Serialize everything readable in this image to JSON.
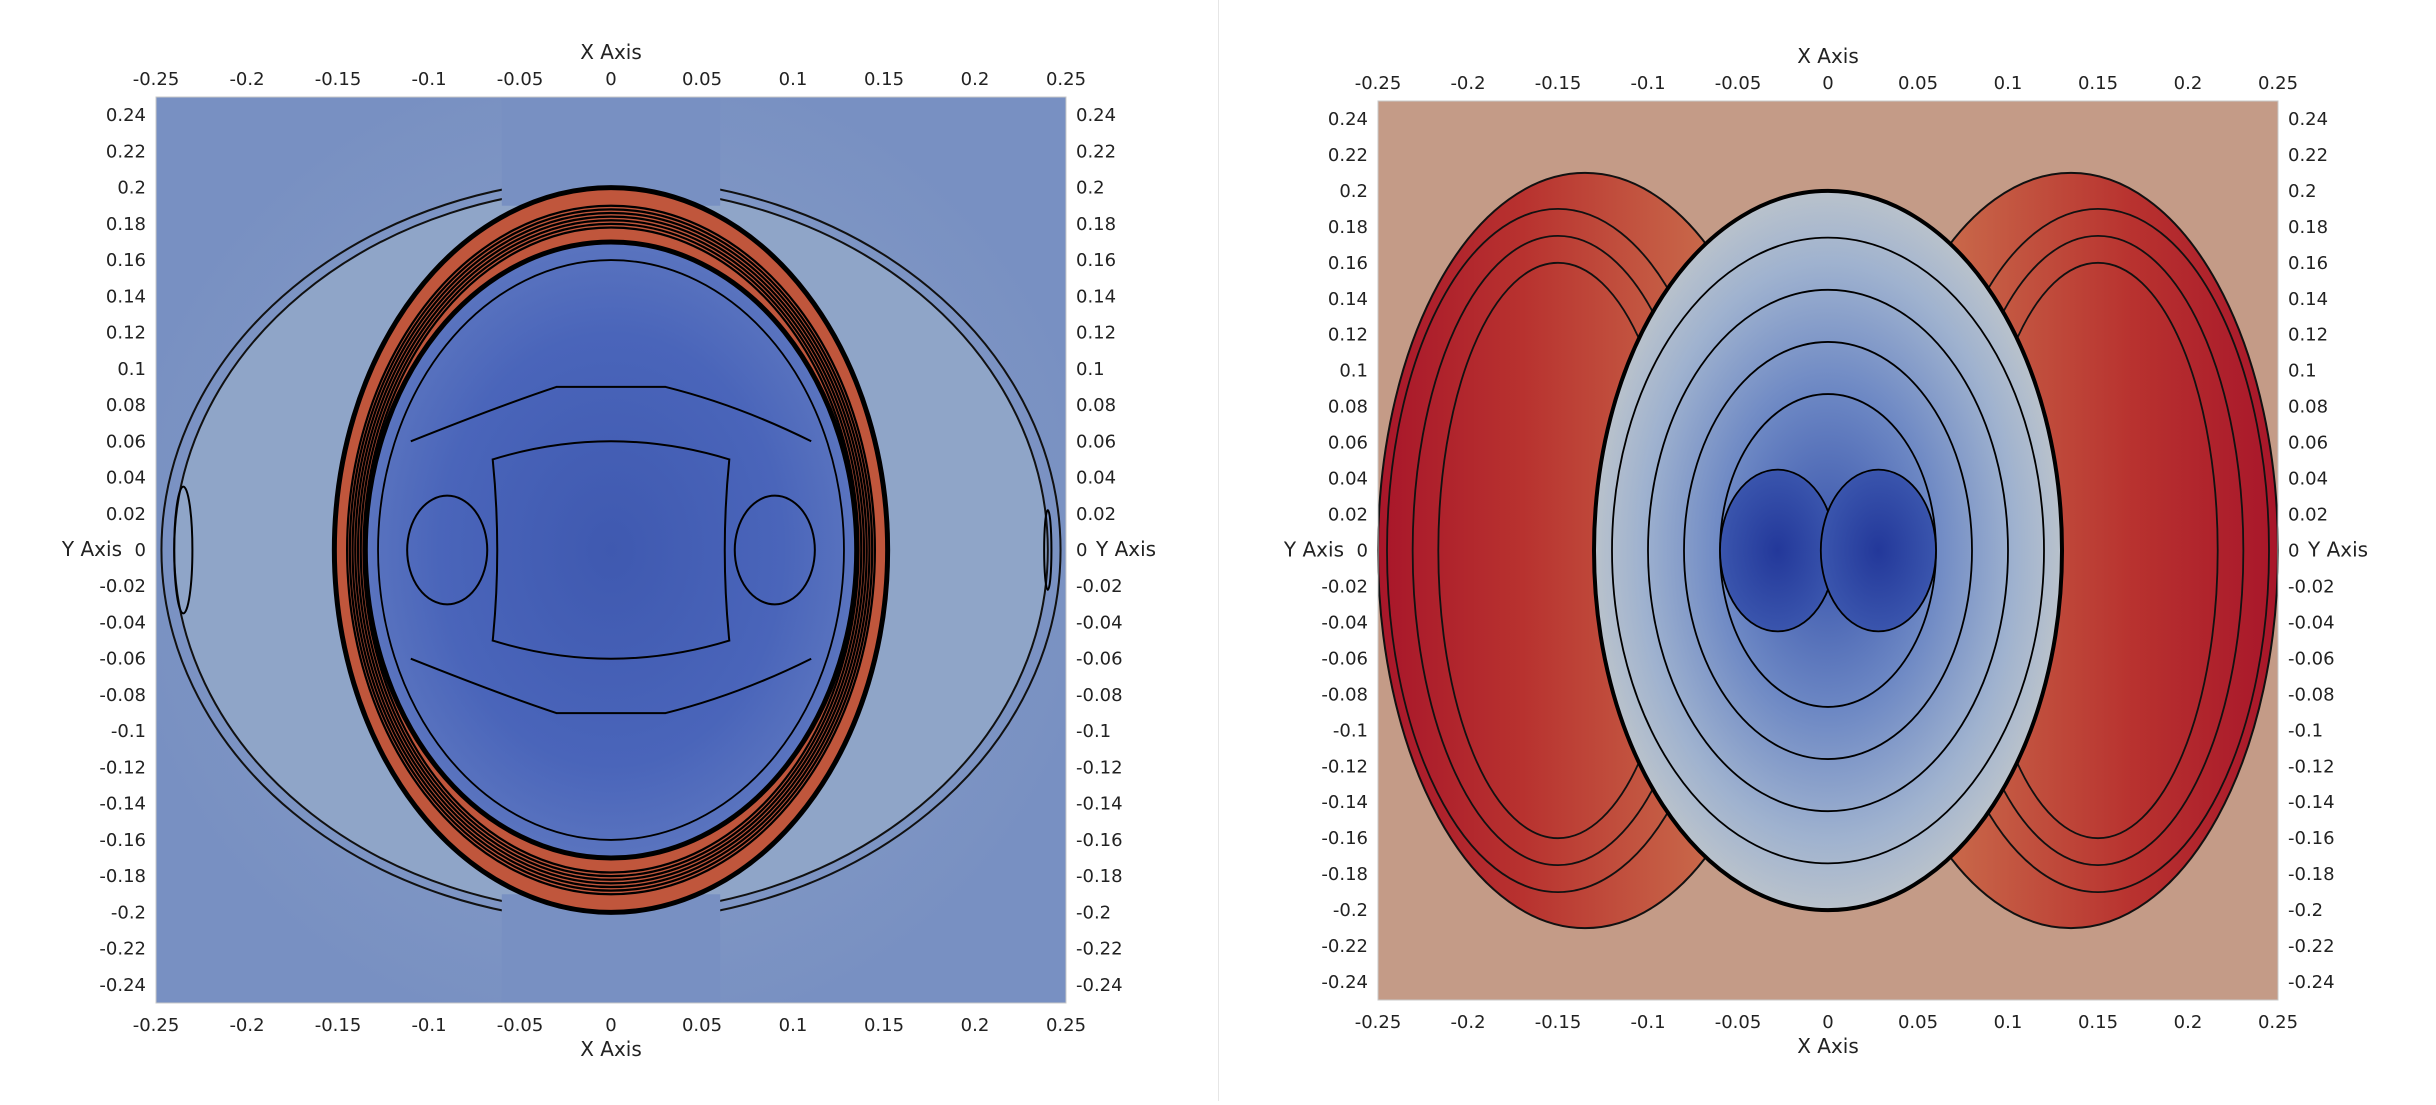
{
  "chart_data": [
    {
      "type": "heatmap",
      "title": "",
      "xlabel": "X Axis",
      "ylabel": "Y Axis",
      "xlim": [
        -0.25,
        0.25
      ],
      "ylim": [
        -0.25,
        0.25
      ],
      "x_ticks": [
        -0.25,
        -0.2,
        -0.15,
        -0.1,
        -0.05,
        0,
        0.05,
        0.1,
        0.15,
        0.2,
        0.25
      ],
      "y_ticks": [
        0.24,
        0.22,
        0.2,
        0.18,
        0.16,
        0.14,
        0.12,
        0.1,
        0.08,
        0.06,
        0.04,
        0.02,
        0,
        -0.02,
        -0.04,
        -0.06,
        -0.08,
        -0.1,
        -0.12,
        -0.14,
        -0.16,
        -0.18,
        -0.2,
        -0.22,
        -0.24
      ],
      "colormap": "cool-to-warm",
      "background_color": "#7890c2",
      "overlay": "black contour lines",
      "regions": [
        {
          "name": "inner disc",
          "shape": "ellipse",
          "cx": 0,
          "cy": 0,
          "rx": 0.135,
          "ry": 0.185,
          "color": "#4a65ba"
        },
        {
          "name": "shock ring",
          "shape": "ellipse-ring",
          "cx": 0,
          "cy": 0,
          "rx": 0.15,
          "ry": 0.2,
          "color": "#c0563c"
        },
        {
          "name": "outer arc",
          "shape": "ellipse",
          "cx": 0,
          "cy": 0,
          "rx": 0.24,
          "ry": 0.2,
          "color": "#8fa5c8"
        }
      ]
    },
    {
      "type": "heatmap",
      "title": "",
      "xlabel": "X Axis",
      "ylabel": "Y Axis",
      "xlim": [
        -0.25,
        0.25
      ],
      "ylim": [
        -0.25,
        0.25
      ],
      "x_ticks": [
        -0.25,
        -0.2,
        -0.15,
        -0.1,
        -0.05,
        0,
        0.05,
        0.1,
        0.15,
        0.2,
        0.25
      ],
      "y_ticks": [
        0.24,
        0.22,
        0.2,
        0.18,
        0.16,
        0.14,
        0.12,
        0.1,
        0.08,
        0.06,
        0.04,
        0.02,
        0,
        -0.02,
        -0.04,
        -0.06,
        -0.08,
        -0.1,
        -0.12,
        -0.14,
        -0.16,
        -0.18,
        -0.2,
        -0.22,
        -0.24
      ],
      "colormap": "cool-to-warm",
      "background_color": "#c49b87",
      "overlay": "black contour lines",
      "regions": [
        {
          "name": "left lobe",
          "shape": "ellipse",
          "cx": -0.14,
          "cy": 0,
          "rx": 0.11,
          "ry": 0.21,
          "color": "#b8322f"
        },
        {
          "name": "right lobe",
          "shape": "ellipse",
          "cx": 0.14,
          "cy": 0,
          "rx": 0.11,
          "ry": 0.21,
          "color": "#b8322f"
        },
        {
          "name": "central region",
          "shape": "ellipse",
          "cx": 0,
          "cy": 0,
          "rx": 0.13,
          "ry": 0.2,
          "color": "#9fb2cf"
        },
        {
          "name": "low-value core left",
          "shape": "ellipse",
          "cx": -0.03,
          "cy": 0.0,
          "rx": 0.035,
          "ry": 0.045,
          "color": "#2e46a0"
        },
        {
          "name": "low-value core right",
          "shape": "ellipse",
          "cx": 0.03,
          "cy": 0.0,
          "rx": 0.035,
          "ry": 0.045,
          "color": "#2e46a0"
        }
      ]
    }
  ]
}
